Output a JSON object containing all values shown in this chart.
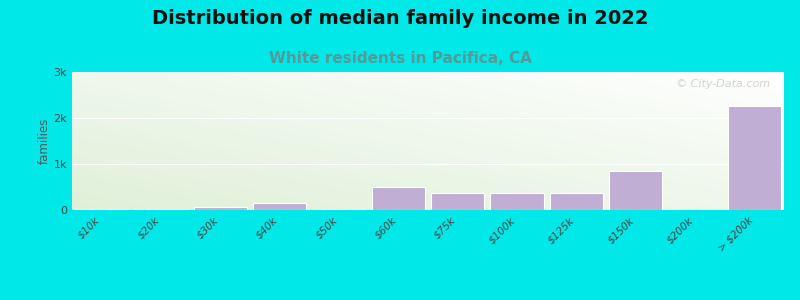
{
  "title": "Distribution of median family income in 2022",
  "subtitle": "White residents in Pacifica, CA",
  "title_fontsize": 14,
  "subtitle_fontsize": 11,
  "subtitle_color": "#559999",
  "ylabel": "families",
  "background_color": "#00e8e8",
  "plot_bg_top_left": "#e8f5e0",
  "plot_bg_bottom_right": "#ffffff",
  "bar_color": "#c0aed4",
  "bar_edge_color": "#b0a0c8",
  "categories": [
    "$10k",
    "$20k",
    "$30k",
    "$40k",
    "$50k",
    "$60k",
    "$75k",
    "$100k",
    "$125k",
    "$150k",
    "$200k",
    "> $200k"
  ],
  "values": [
    30,
    30,
    60,
    160,
    30,
    490,
    370,
    360,
    380,
    840,
    0,
    2270
  ],
  "ylim": [
    0,
    3000
  ],
  "yticks": [
    0,
    1000,
    2000,
    3000
  ],
  "ytick_labels": [
    "0",
    "1k",
    "2k",
    "3k"
  ],
  "watermark": "© City-Data.com"
}
